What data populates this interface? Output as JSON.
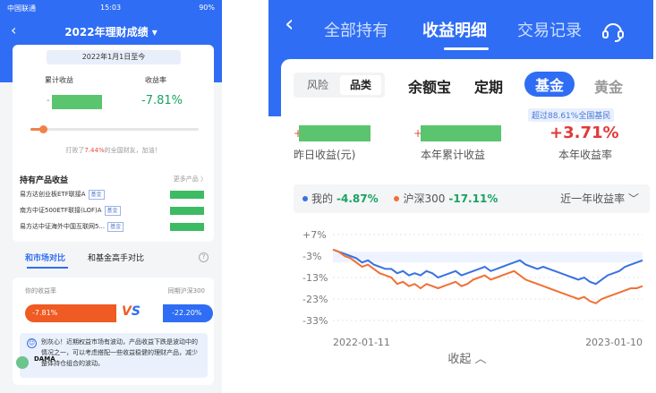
{
  "left": {
    "status_bar": {
      "carrier": "中国联通",
      "time": "15:03",
      "battery": "90%"
    },
    "nav": {
      "back_icon": "chevron-left-icon",
      "title": "2022年理财成绩 ▾"
    },
    "summary": {
      "date_range": "2022年1月1日至今",
      "cumulative_label": "累计收益",
      "rate_label": "收益率",
      "rate_value": "-7.81%",
      "beat_prefix": "打败了",
      "beat_pct": "7.44%",
      "beat_suffix": "的全国财友，加油！",
      "beat_fraction": 0.0744
    },
    "products": {
      "title": "持有产品收益",
      "more": "更多产品 〉",
      "items": [
        {
          "name": "易方达创业板ETF联接A",
          "tag": "基金"
        },
        {
          "name": "南方中证500ETF联接(LOF)A",
          "tag": "基金"
        },
        {
          "name": "易方达中证海外中国互联网5...",
          "tag": "基金"
        }
      ]
    },
    "tabs": {
      "market": "和市场对比",
      "expert": "和基金高手对比"
    },
    "compare": {
      "mine_label": "你的收益率",
      "market_label": "同期沪深300",
      "mine_value": "-7.81%",
      "market_value": "-22.20%",
      "vs_v": "V",
      "vs_s": "S",
      "tip": "别灰心！近期权益市场有波动，产品收益下跌是波动中的情况之一，可以考虑搭配一些收益稳健的理财产品，减少整体持仓组合的波动。"
    },
    "watermark": "DAMA"
  },
  "right": {
    "nav": {
      "back_icon": "chevron-left-icon",
      "tabs": [
        "全部持有",
        "收益明细",
        "交易记录"
      ],
      "active_tab": 1,
      "service_icon": "customer-service-icon"
    },
    "segments": [
      "风险",
      "品类"
    ],
    "active_segment": 1,
    "categories": [
      "余额宝",
      "定期",
      "基金",
      "黄金"
    ],
    "active_category": 2,
    "badge": "超过88.61%全国基民",
    "kpis": {
      "yesterday_label": "昨日收益(元)",
      "year_label": "本年累计收益",
      "year_rate_label": "本年收益率",
      "year_rate_value": "+3.71%",
      "plus_sign": "+"
    },
    "legend": {
      "mine_label": "我的",
      "mine_value": "-4.87%",
      "hs300_label": "沪深300",
      "hs300_value": "-17.11%",
      "period": "近一年收益率 ﹀"
    },
    "collapse_label": "收起 ︿"
  },
  "colors": {
    "accent": "#2f6df4",
    "orange": "#f05a23",
    "green": "#1aa260",
    "red": "#e03a3a"
  },
  "chart_data": {
    "type": "line",
    "ylim": [
      -33,
      7
    ],
    "yticks": [
      "+7%",
      "-3%",
      "-13%",
      "-23%",
      "-33%"
    ],
    "ytick_values": [
      7,
      -3,
      -13,
      -23,
      -33
    ],
    "x_start_label": "2022-01-11",
    "x_end_label": "2023-01-10",
    "series": [
      {
        "name": "我的",
        "color": "#3a72e0",
        "values": [
          0,
          -1,
          -2,
          -3,
          -4,
          -6,
          -5,
          -7,
          -8,
          -9,
          -9,
          -11,
          -10,
          -12,
          -11,
          -12,
          -10,
          -11,
          -13,
          -12,
          -11,
          -10,
          -12,
          -11,
          -10,
          -9,
          -8,
          -10,
          -9,
          -8,
          -7,
          -6,
          -5,
          -7,
          -8,
          -9,
          -8,
          -9,
          -10,
          -11,
          -12,
          -13,
          -14,
          -13,
          -15,
          -16,
          -14,
          -12,
          -11,
          -10,
          -8,
          -7,
          -6,
          -5
        ]
      },
      {
        "name": "沪深300",
        "color": "#f07036",
        "values": [
          0,
          -1,
          -3,
          -4,
          -6,
          -8,
          -7,
          -9,
          -11,
          -12,
          -13,
          -16,
          -15,
          -17,
          -16,
          -18,
          -16,
          -17,
          -18,
          -17,
          -16,
          -15,
          -17,
          -16,
          -14,
          -13,
          -12,
          -14,
          -13,
          -12,
          -11,
          -10,
          -12,
          -14,
          -15,
          -16,
          -17,
          -18,
          -19,
          -20,
          -21,
          -22,
          -23,
          -22,
          -24,
          -25,
          -23,
          -22,
          -21,
          -20,
          -19,
          -18,
          -18,
          -17
        ]
      }
    ]
  }
}
